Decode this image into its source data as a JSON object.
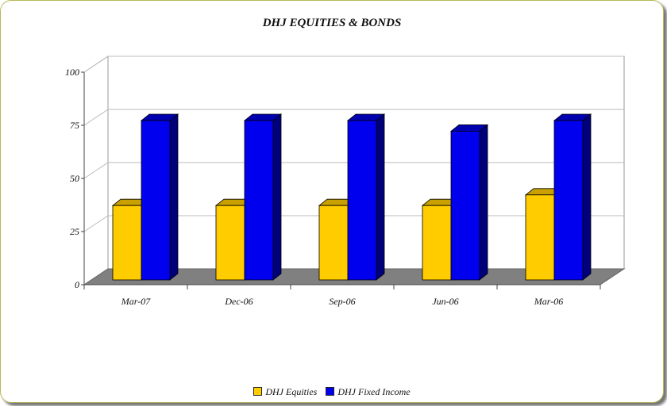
{
  "chart_data": {
    "type": "bar",
    "title": "DHJ EQUITIES & BONDS",
    "categories": [
      "Mar-07",
      "Dec-06",
      "Sep-06",
      "Jun-06",
      "Mar-06"
    ],
    "series": [
      {
        "name": "DHJ Equities",
        "values": [
          35,
          35,
          35,
          35,
          40
        ],
        "color": "#ffcc00",
        "side_color": "#9c7c00",
        "top_color": "#c8a000"
      },
      {
        "name": "DHJ Fixed Income",
        "values": [
          75,
          75,
          75,
          70,
          75
        ],
        "color": "#0000ee",
        "side_color": "#00007a",
        "top_color": "#0000b0"
      }
    ],
    "yticks": [
      0,
      25,
      50,
      75,
      100
    ],
    "ylim": [
      0,
      100
    ],
    "grid": true,
    "legend_position": "bottom",
    "floor_color": "#808080"
  }
}
